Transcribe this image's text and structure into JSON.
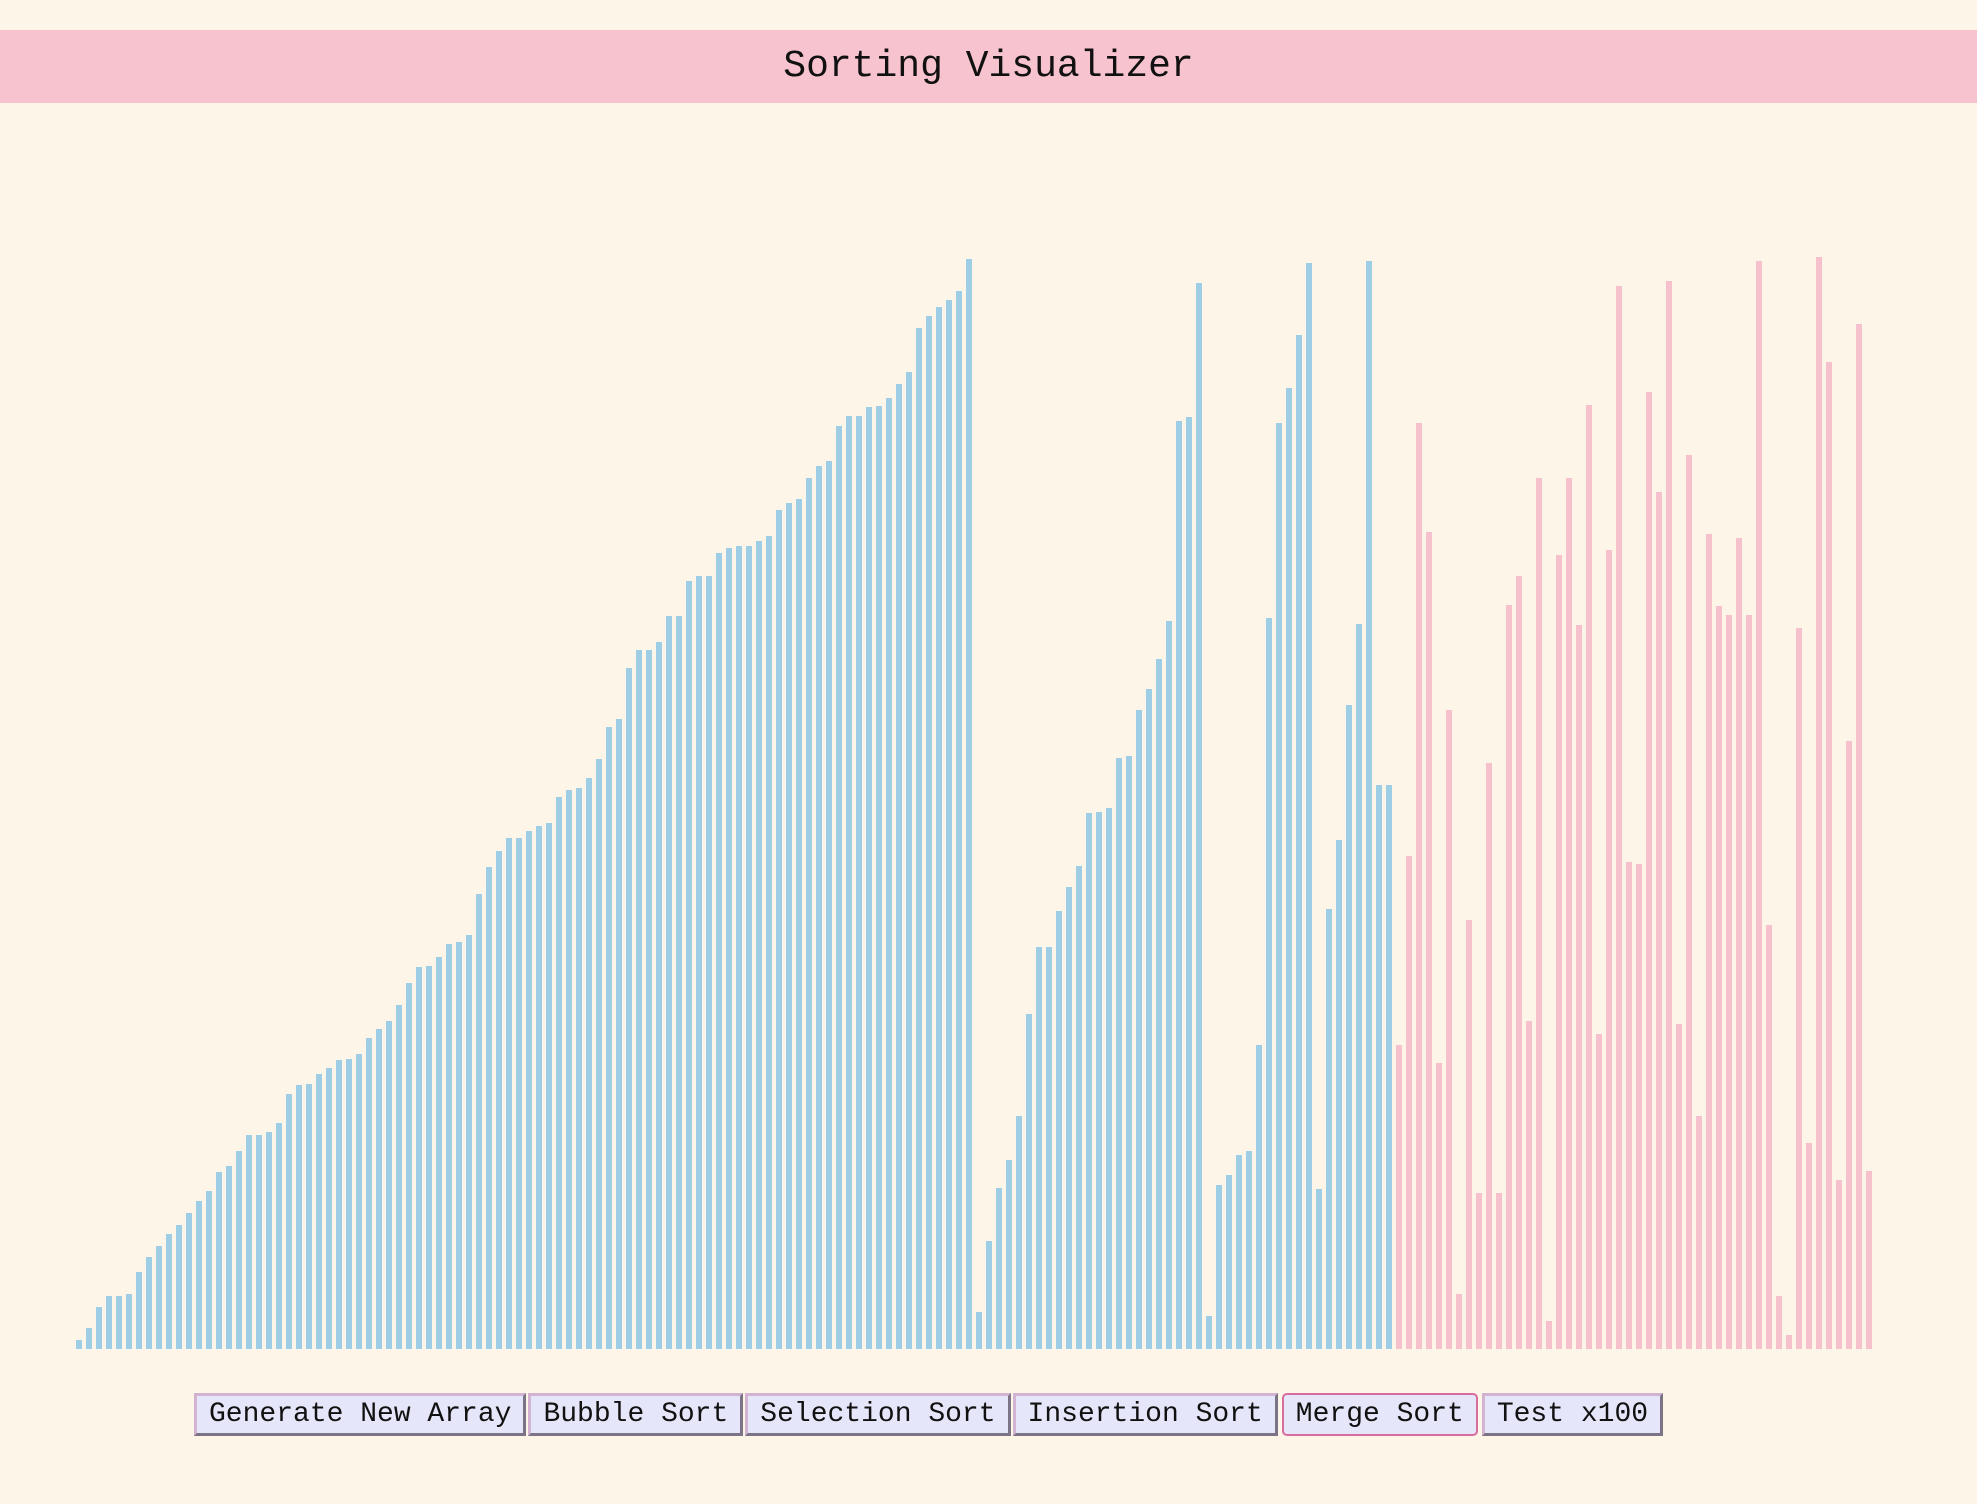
{
  "header": {
    "title": "Sorting Visualizer"
  },
  "bar_groups": [
    {
      "color": "#9ecde6",
      "values": [
        7,
        17,
        33,
        42,
        42,
        44,
        61,
        73,
        82,
        91,
        98,
        108,
        117,
        125,
        140,
        145,
        157,
        170,
        170,
        172,
        179,
        202,
        209,
        210,
        218,
        223,
        229,
        230,
        234,
        247,
        254,
        260,
        273,
        290,
        303,
        304,
        311,
        321,
        323,
        328,
        361,
        382,
        395,
        405,
        405,
        411,
        415,
        417,
        438,
        443,
        445,
        453,
        468,
        493,
        500,
        540,
        554,
        554,
        561,
        581,
        581,
        609,
        613,
        613,
        631,
        635,
        637,
        637,
        641,
        645,
        665,
        671,
        674,
        691,
        700,
        704,
        732,
        740,
        740,
        747,
        748,
        754,
        765,
        775,
        810,
        819,
        826,
        832,
        839,
        864,
        29,
        86,
        128,
        150,
        185,
        266,
        319,
        319,
        347,
        366,
        383,
        425,
        426,
        429,
        469,
        470,
        507,
        523,
        547,
        577,
        736,
        739,
        845,
        26,
        130,
        138,
        154,
        157,
        241,
        580,
        734,
        762,
        804,
        861,
        127,
        349,
        404,
        511,
        575,
        863,
        447,
        447
      ]
    },
    {
      "color": "#f6c1cc",
      "values": [
        241,
        391,
        734,
        648,
        227,
        507,
        44,
        340,
        124,
        465,
        124,
        590,
        613,
        260,
        691,
        22,
        630,
        691,
        574,
        749,
        250,
        634,
        843,
        386,
        385,
        759,
        680,
        847,
        258,
        709,
        185,
        646,
        589,
        582,
        643,
        582,
        863,
        336,
        42,
        11,
        572,
        163,
        866,
        783,
        134,
        482,
        813,
        141
      ]
    }
  ],
  "buttons": [
    "Generate New Array",
    "Bubble Sort",
    "Selection Sort",
    "Insertion Sort",
    "Merge Sort",
    "Test x100"
  ],
  "active_button": "Merge Sort"
}
